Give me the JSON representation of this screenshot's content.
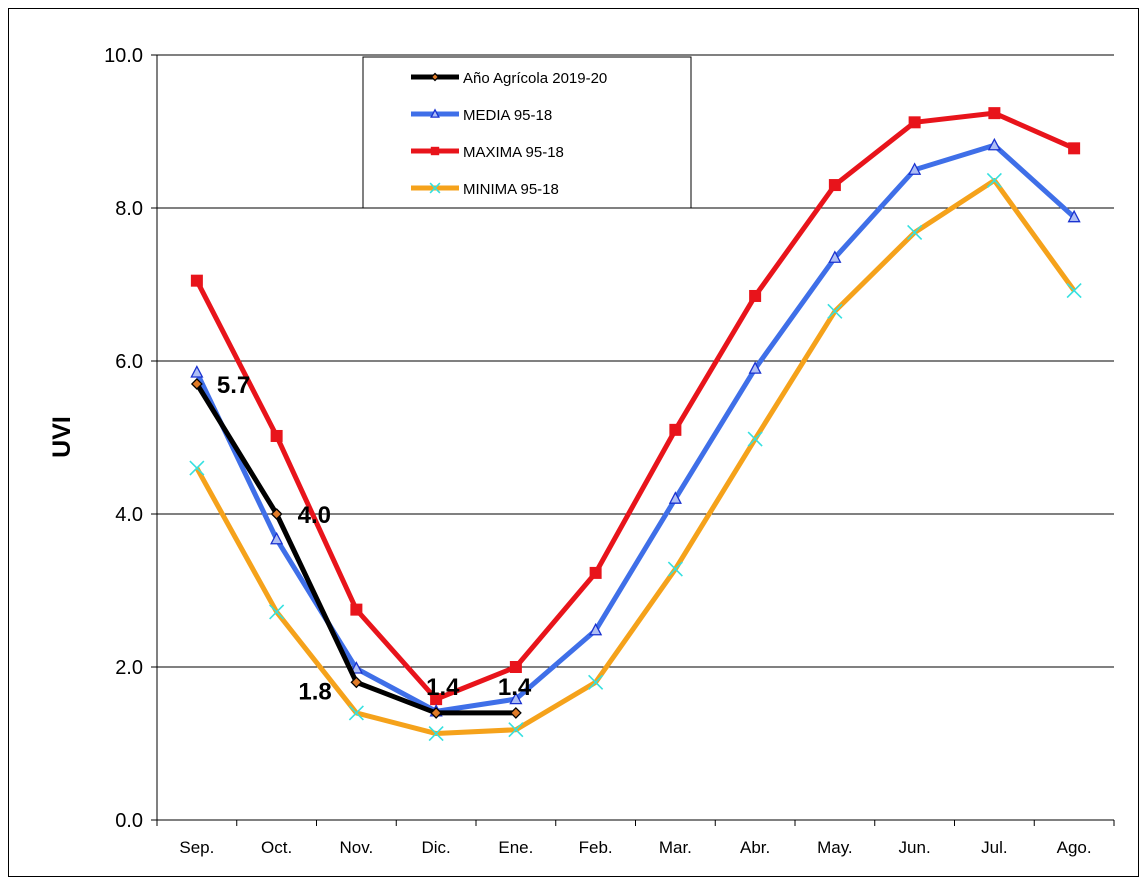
{
  "chart_data": {
    "type": "line",
    "title": "",
    "xlabel": "",
    "ylabel": "UVI",
    "ylim": [
      0,
      10
    ],
    "yticks": [
      "0.0",
      "2.0",
      "4.0",
      "6.0",
      "8.0",
      "10.0"
    ],
    "categories": [
      "Sep.",
      "Oct.",
      "Nov.",
      "Dic.",
      "Ene.",
      "Feb.",
      "Mar.",
      "Abr.",
      "May.",
      "Jun.",
      "Jul.",
      "Ago."
    ],
    "grid": "horizontal",
    "legend_position": "top-center",
    "series": [
      {
        "name": "MAXIMA 95-18",
        "color": "#e8141b",
        "marker": "square",
        "values": [
          7.05,
          5.02,
          2.75,
          1.58,
          2.0,
          3.23,
          5.1,
          6.85,
          8.3,
          9.12,
          9.24,
          8.78
        ]
      },
      {
        "name": "MEDIA 95-18",
        "color": "#3f6fe8",
        "marker": "triangle",
        "values": [
          5.85,
          3.67,
          1.98,
          1.42,
          1.58,
          2.48,
          4.2,
          5.9,
          7.35,
          8.5,
          8.82,
          7.88
        ]
      },
      {
        "name": "MINIMA 95-18",
        "color": "#f5a21b",
        "marker": "x",
        "values": [
          4.6,
          2.72,
          1.4,
          1.13,
          1.18,
          1.8,
          3.28,
          4.98,
          6.65,
          7.68,
          8.36,
          6.92
        ]
      },
      {
        "name": "Año  Agrícola 2019-20",
        "color": "#000000",
        "marker": "diamond",
        "values": [
          5.7,
          4.0,
          1.8,
          1.4,
          1.4,
          null,
          null,
          null,
          null,
          null,
          null,
          null
        ],
        "data_labels": [
          "5.7",
          "4.0",
          "1.8",
          "1.4",
          "1.4"
        ]
      }
    ],
    "legend": [
      "Año  Agrícola 2019-20",
      "MEDIA 95-18",
      "MAXIMA 95-18",
      "MINIMA 95-18"
    ]
  }
}
